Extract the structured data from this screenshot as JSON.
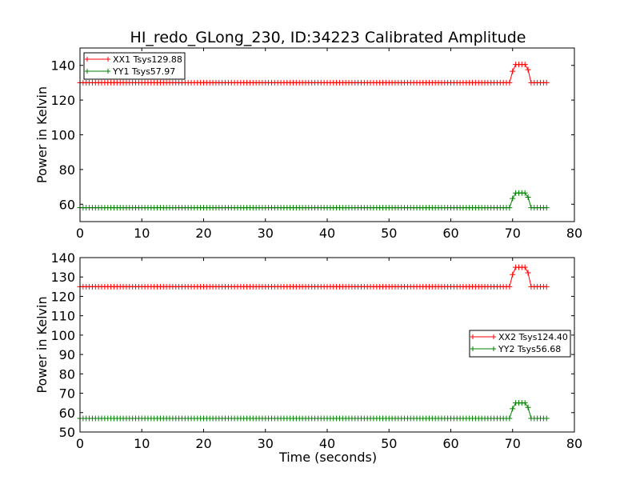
{
  "title": "HI_redo_GLong_230, ID:34223 Calibrated Amplitude",
  "xlabel": "Time (seconds)",
  "colors": {
    "xx": "#ff0000",
    "yy": "#008000"
  },
  "chart_data": [
    {
      "type": "line",
      "marker": "+",
      "ylabel": "Power in Kelvin",
      "xlim": [
        0,
        80
      ],
      "ylim": [
        50,
        150
      ],
      "xticks": [
        0,
        10,
        20,
        30,
        40,
        50,
        60,
        70,
        80
      ],
      "yticks": [
        60,
        80,
        100,
        120,
        140
      ],
      "legend_position": "upper-left",
      "series": [
        {
          "name": "XX1 Tsys129.88",
          "color": "#ff0000",
          "baseline": 130,
          "high": 140.5
        },
        {
          "name": "YY1 Tsys57.97",
          "color": "#008000",
          "baseline": 58,
          "high": 66.5
        }
      ]
    },
    {
      "type": "line",
      "marker": "+",
      "ylabel": "Power in Kelvin",
      "xlabel": "Time (seconds)",
      "xlim": [
        0,
        80
      ],
      "ylim": [
        50,
        140
      ],
      "xticks": [
        0,
        10,
        20,
        30,
        40,
        50,
        60,
        70,
        80
      ],
      "yticks": [
        50,
        60,
        70,
        80,
        90,
        100,
        110,
        120,
        130,
        140
      ],
      "legend_position": "center-right",
      "series": [
        {
          "name": "XX2 Tsys124.40",
          "color": "#ff0000",
          "baseline": 125,
          "high": 135
        },
        {
          "name": "YY2 Tsys56.68",
          "color": "#008000",
          "baseline": 57,
          "high": 65
        }
      ]
    }
  ],
  "time_profile": {
    "t_start": 0,
    "t_end": 75.5,
    "step": 0.5,
    "rise_start": 69.5,
    "rise_end": 70.3,
    "fall_start": 72.3,
    "fall_end": 73.0
  }
}
